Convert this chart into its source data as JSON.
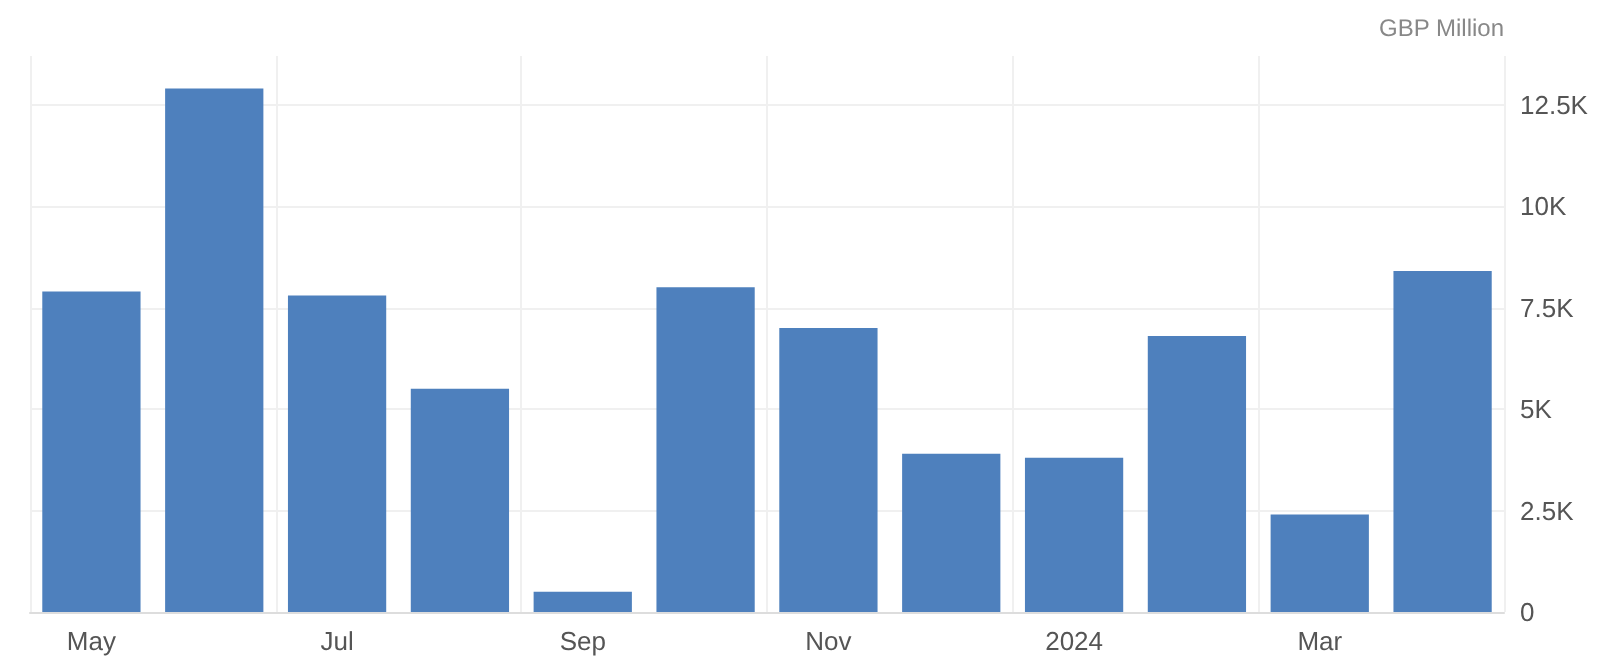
{
  "chart_data": {
    "type": "bar",
    "ylabel": "GBP Million",
    "categories": [
      "May",
      null,
      "Jul",
      null,
      "Sep",
      null,
      "Nov",
      null,
      "2024",
      null,
      "Mar",
      null
    ],
    "values": [
      7900,
      12900,
      7800,
      5500,
      500,
      8000,
      7000,
      3900,
      3800,
      6800,
      2400,
      8400
    ],
    "color": "#4e80bd",
    "ylim": [
      0,
      13700
    ],
    "yticks": [
      {
        "value": 0,
        "label": "0"
      },
      {
        "value": 2500,
        "label": "2.5K"
      },
      {
        "value": 5000,
        "label": "5K"
      },
      {
        "value": 7500,
        "label": "7.5K"
      },
      {
        "value": 10000,
        "label": "10K"
      },
      {
        "value": 12500,
        "label": "12.5K"
      }
    ],
    "grid": true
  }
}
